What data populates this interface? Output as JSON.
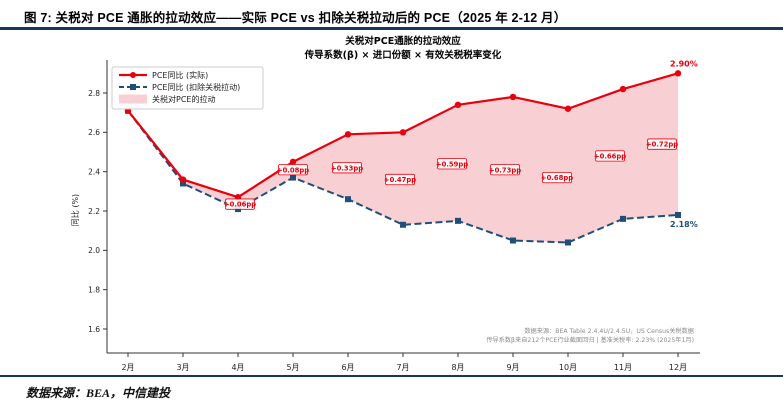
{
  "header": {
    "title": "图 7: 关税对 PCE 通胀的拉动效应——实际 PCE vs 扣除关税拉动后的 PCE（2025 年 2-12 月）"
  },
  "footer": {
    "source": "数据来源：BEA，中信建投"
  },
  "colors": {
    "rule": "#17375e",
    "actual": "#e8000d",
    "extariff": "#1f4e79",
    "fill": "#f2a9ae",
    "annotation": "#e8000d",
    "note": "#8c8c8c",
    "axis": "#333333",
    "tick_text": "#222222",
    "legend_border": "#cccccc"
  },
  "chart_data": {
    "type": "line",
    "title": "关税对PCE通胀的拉动效应",
    "subtitle": "传导系数(β) × 进口份额 × 有效关税税率变化",
    "ylabel": "同比 (%)",
    "yticks": [
      1.6,
      1.8,
      2.0,
      2.2,
      2.4,
      2.6,
      2.8
    ],
    "ylim": [
      1.48,
      2.96
    ],
    "grid": false,
    "legend_position": "upper-left",
    "categories": [
      "2月",
      "3月",
      "4月",
      "5月",
      "6月",
      "7月",
      "8月",
      "9月",
      "10月",
      "11月",
      "12月"
    ],
    "series": [
      {
        "name": "PCE同比 (实际)",
        "style": "solid",
        "marker": "circle",
        "color_key": "actual",
        "values": [
          2.71,
          2.36,
          2.27,
          2.45,
          2.59,
          2.6,
          2.74,
          2.78,
          2.72,
          2.82,
          2.9
        ]
      },
      {
        "name": "PCE同比 (扣除关税拉动)",
        "style": "dashed",
        "marker": "square",
        "color_key": "extariff",
        "values": [
          2.71,
          2.34,
          2.21,
          2.37,
          2.26,
          2.13,
          2.15,
          2.05,
          2.04,
          2.16,
          2.18
        ]
      }
    ],
    "fill_between": {
      "label": "关税对PCE的拉动"
    },
    "annotations": [
      {
        "label": "+0.06pp",
        "category": "4月",
        "index": 2,
        "y": 2.235,
        "dx": 2
      },
      {
        "label": "+0.08pp",
        "category": "5月",
        "index": 3,
        "y": 2.41,
        "dx": 0
      },
      {
        "label": "+0.33pp",
        "category": "6月",
        "index": 4,
        "y": 2.42,
        "dx": -1
      },
      {
        "label": "+0.47pp",
        "category": "7月",
        "index": 5,
        "y": 2.36,
        "dx": -3
      },
      {
        "label": "+0.59pp",
        "category": "8月",
        "index": 6,
        "y": 2.44,
        "dx": -6
      },
      {
        "label": "+0.73pp",
        "category": "9月",
        "index": 7,
        "y": 2.41,
        "dx": -8
      },
      {
        "label": "+0.68pp",
        "category": "10月",
        "index": 8,
        "y": 2.37,
        "dx": -11
      },
      {
        "label": "+0.66pp",
        "category": "11月",
        "index": 9,
        "y": 2.48,
        "dx": -13
      },
      {
        "label": "+0.72pp",
        "category": "12月",
        "index": 10,
        "y": 2.54,
        "dx": -16
      }
    ],
    "end_labels": [
      {
        "text": "2.90%",
        "series": "actual"
      },
      {
        "text": "2.18%",
        "series": "extariff"
      }
    ],
    "notes": [
      "数据来源：BEA Table 2.4.4U/2.4.5U，US Census关税数据",
      "传导系数β来自212个PCE行业截面回归 | 基准关税率: 2.23% (2025年1月)"
    ]
  }
}
